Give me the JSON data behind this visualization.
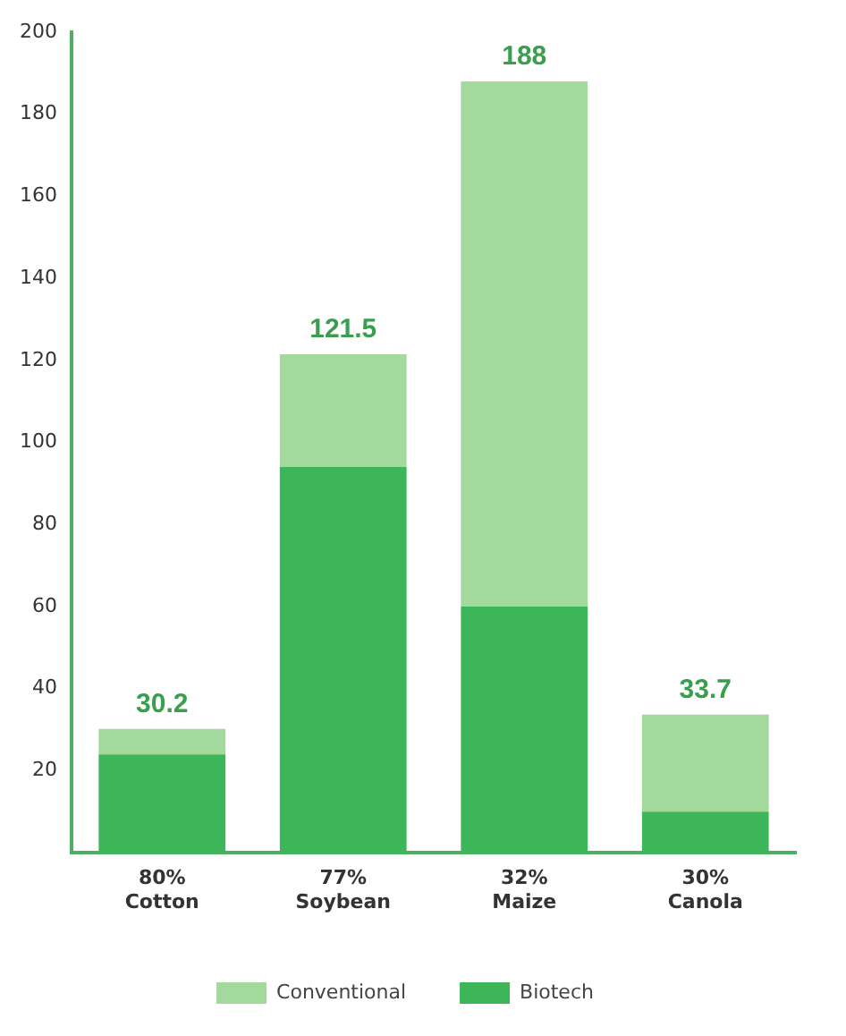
{
  "chart_data": {
    "type": "bar",
    "stacked": true,
    "categories": [
      "80% Cotton",
      "77% Soybean",
      "32% Maize",
      "30% Canola"
    ],
    "series": [
      {
        "name": "Biotech",
        "color": "#3db65a",
        "values": [
          24,
          94,
          60,
          10
        ]
      },
      {
        "name": "Conventional",
        "color": "#a3d99c",
        "values": [
          6.2,
          27.5,
          128,
          23.7
        ]
      }
    ],
    "totals": [
      "30.2",
      "121.5",
      "188",
      "33.7"
    ],
    "ylim": [
      0,
      200
    ],
    "yticks": [
      20,
      40,
      60,
      80,
      100,
      120,
      140,
      160,
      180,
      200
    ],
    "grid": false,
    "legend": "bottom"
  }
}
